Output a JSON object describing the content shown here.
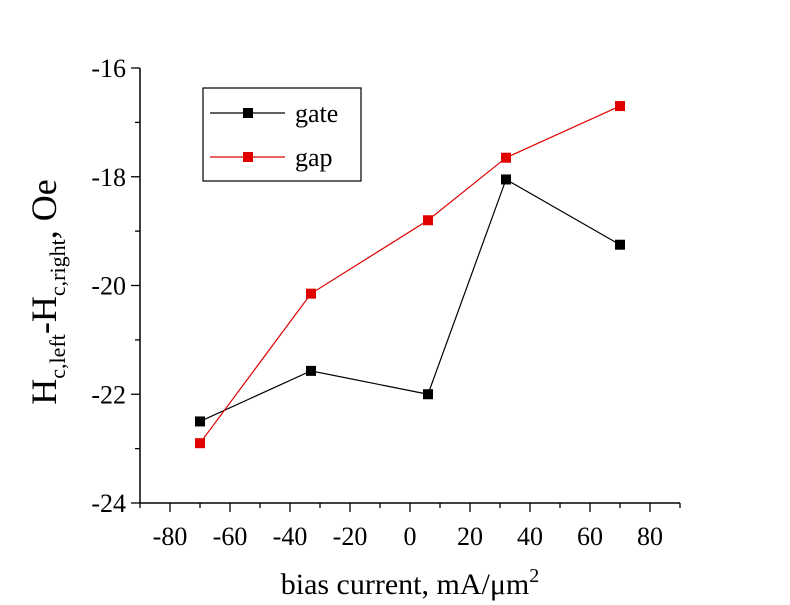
{
  "chart_data": {
    "type": "line",
    "x_axis": {
      "ticks": [
        -80,
        -60,
        -40,
        -20,
        0,
        20,
        40,
        60,
        80
      ],
      "tick_labels": [
        "-80",
        "-60",
        "-40",
        "-20",
        "0",
        "20",
        "40",
        "60",
        "80"
      ],
      "range": [
        -90,
        90
      ],
      "label_text": "bias current, mA/μm",
      "label_superscript": "2"
    },
    "y_axis": {
      "ticks": [
        -16,
        -18,
        -20,
        -22,
        -24
      ],
      "tick_labels": [
        "-16",
        "-18",
        "-20",
        "-22",
        "-24"
      ],
      "range": [
        -24,
        -16
      ],
      "label_H1": "H",
      "label_sub1": "c,left",
      "label_dash": "-H",
      "label_sub2": "c,right",
      "label_unit": ", Oe"
    },
    "series": [
      {
        "name": "gate",
        "color": "#000000",
        "x": [
          -70,
          -33,
          6,
          32,
          70
        ],
        "y": [
          -22.5,
          -21.57,
          -22.0,
          -18.05,
          -19.25
        ]
      },
      {
        "name": "gap",
        "color": "#e00000",
        "x": [
          -70,
          -33,
          6,
          32,
          70
        ],
        "y": [
          -22.9,
          -20.15,
          -18.8,
          -17.65,
          -16.7
        ]
      }
    ],
    "legend": {
      "placement": "top-left"
    },
    "grid": false
  }
}
